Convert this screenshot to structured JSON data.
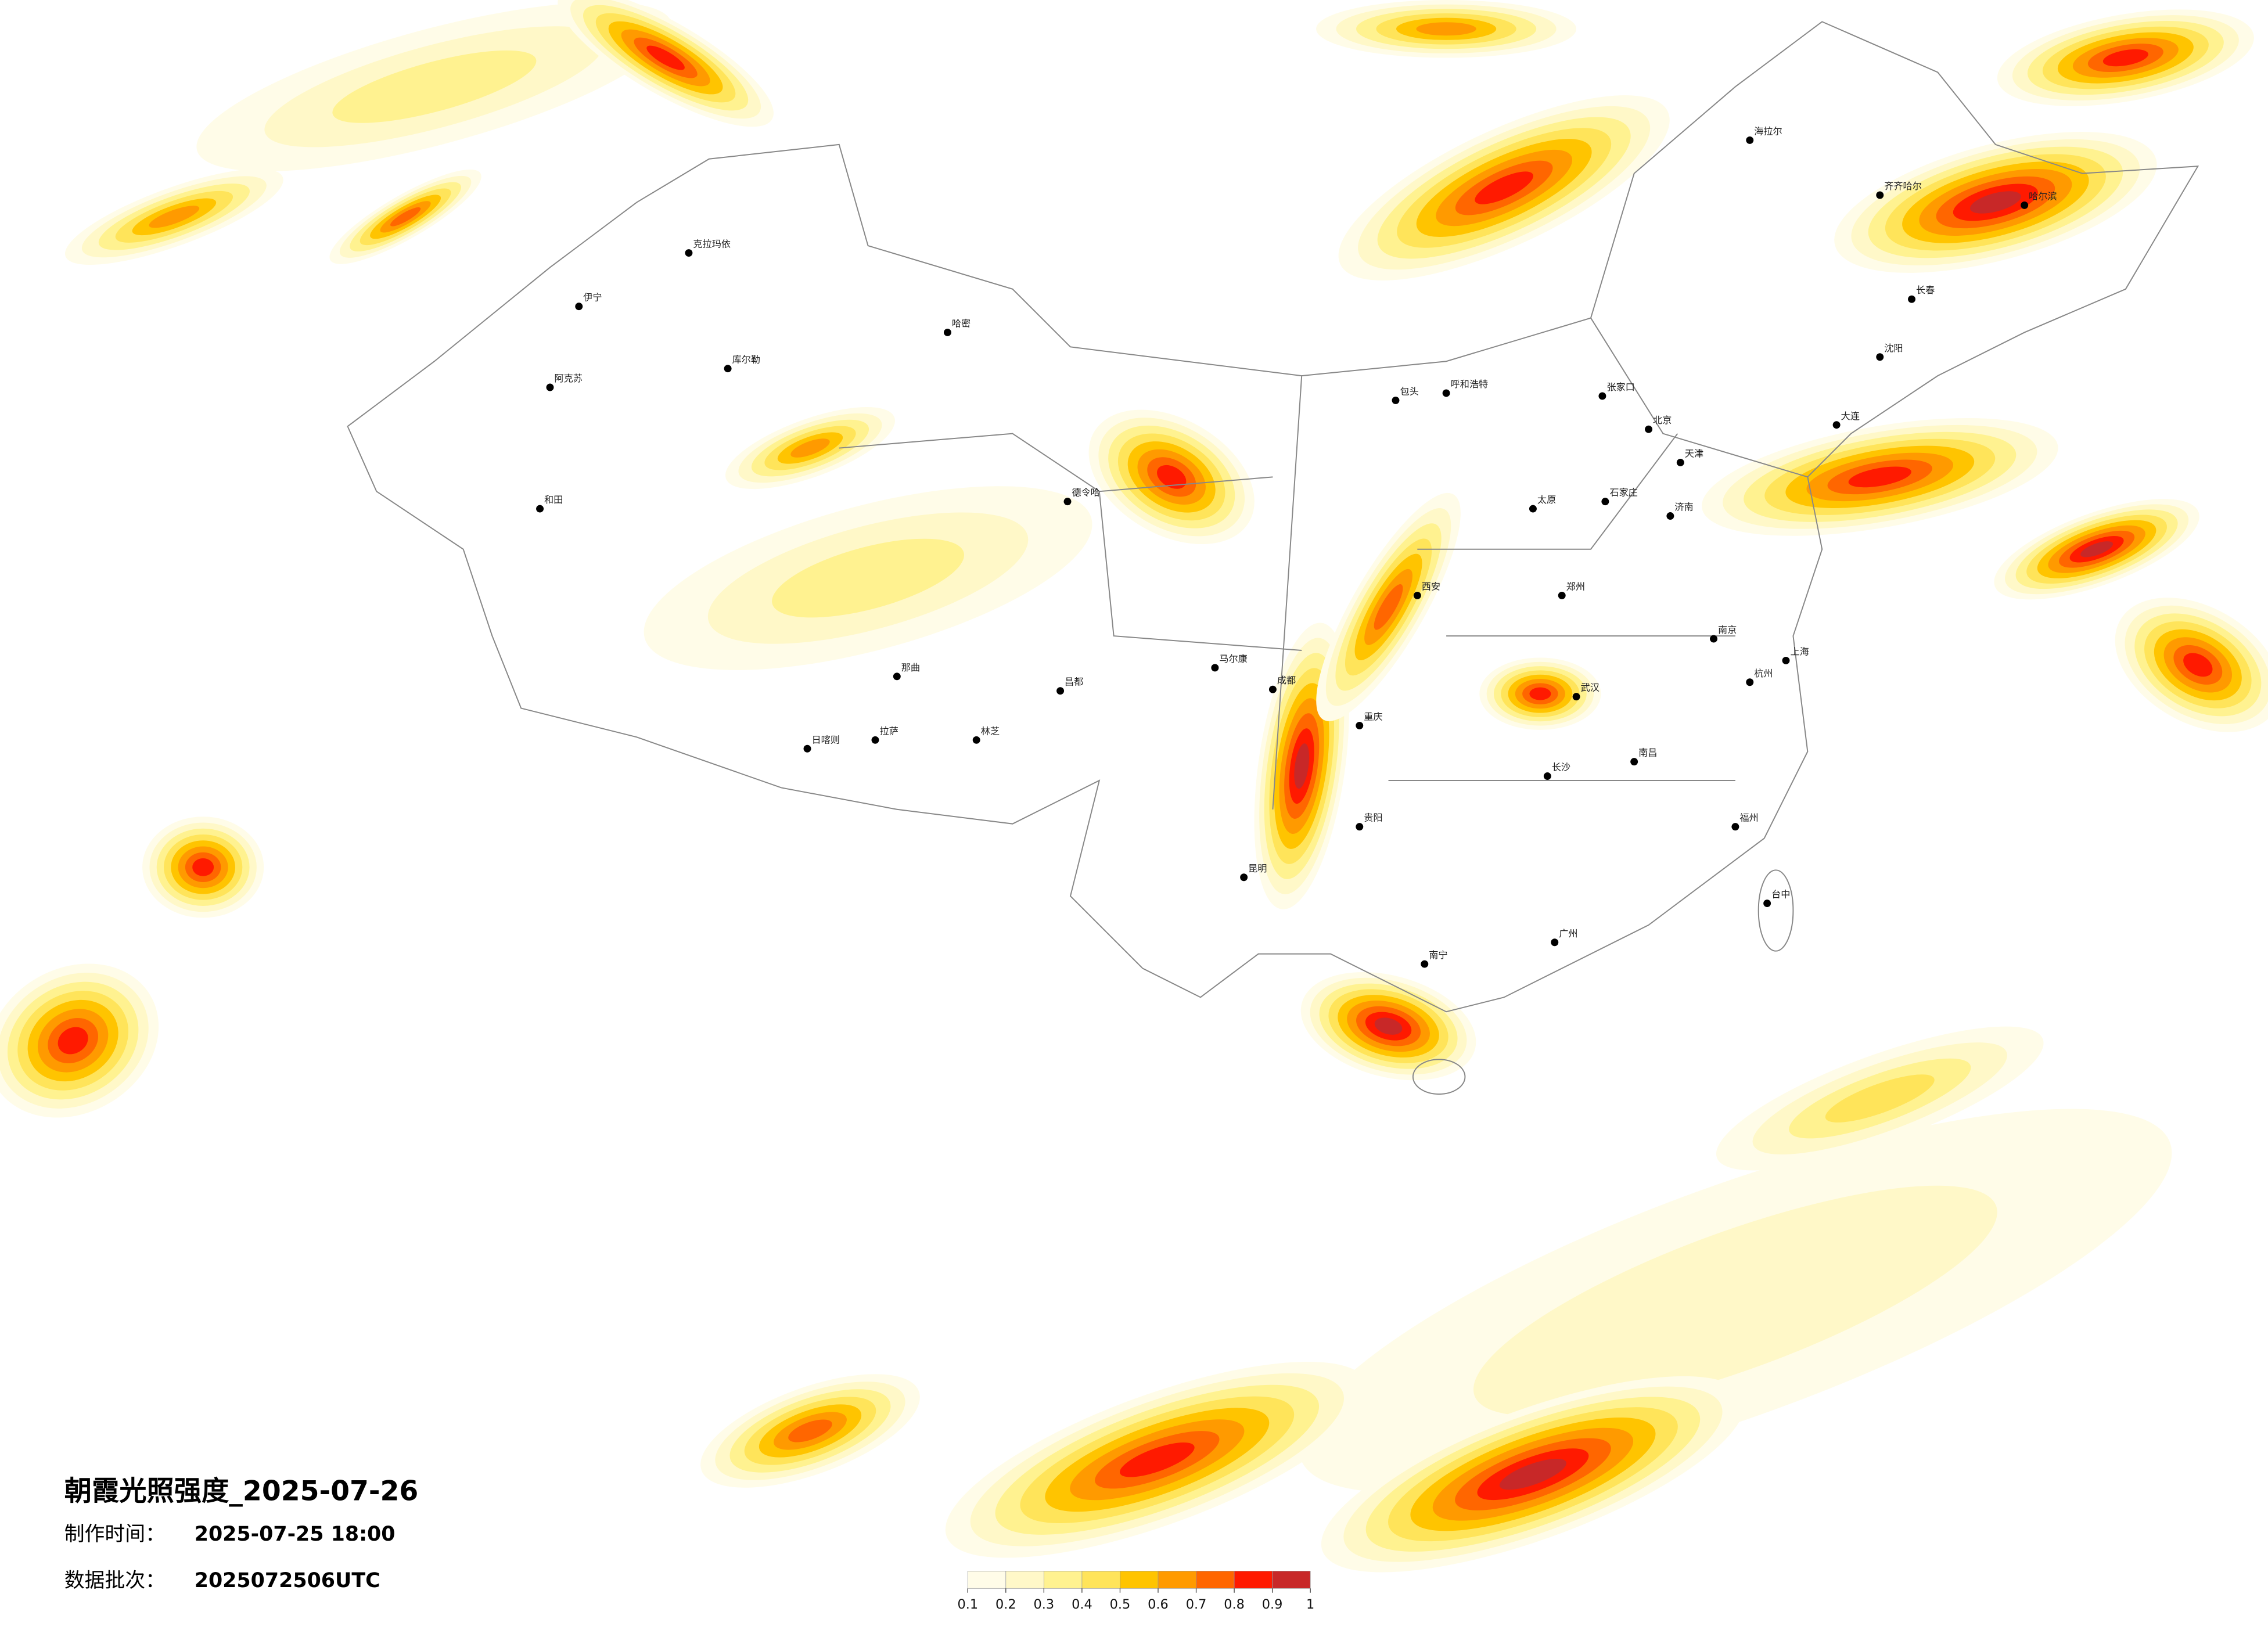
{
  "header": {
    "title": "朝霞光照强度_2025-07-26",
    "made_label": "制作时间：",
    "made_value": "2025-07-25 18:00",
    "batch_label": "数据批次：",
    "batch_value": "2025072506UTC"
  },
  "legend": {
    "ticks": [
      0.1,
      0.2,
      0.3,
      0.4,
      0.5,
      0.6,
      0.7,
      0.8,
      0.9,
      1
    ],
    "colors": [
      "#fffce8",
      "#fff8c8",
      "#fff290",
      "#ffe45a",
      "#ffc400",
      "#ff9a00",
      "#ff6600",
      "#ff1a00",
      "#c82828"
    ]
  },
  "cities": [
    "克拉玛依",
    "伊宁",
    "库尔勒",
    "阿克苏",
    "和田",
    "哈密",
    "德令哈",
    "那曲",
    "日喀则",
    "拉萨",
    "林芝",
    "昌都",
    "马尔康",
    "海拉尔",
    "齐齐哈尔",
    "哈尔滨",
    "长春",
    "沈阳",
    "大连",
    "呼和浩特",
    "包头",
    "张家口",
    "北京",
    "天津",
    "石家庄",
    "太原",
    "济南",
    "郑州",
    "西安",
    "南京",
    "上海",
    "杭州",
    "武汉",
    "长沙",
    "南昌",
    "福州",
    "台中",
    "成都",
    "重庆",
    "贵阳",
    "昆明",
    "南宁",
    "广州"
  ]
}
